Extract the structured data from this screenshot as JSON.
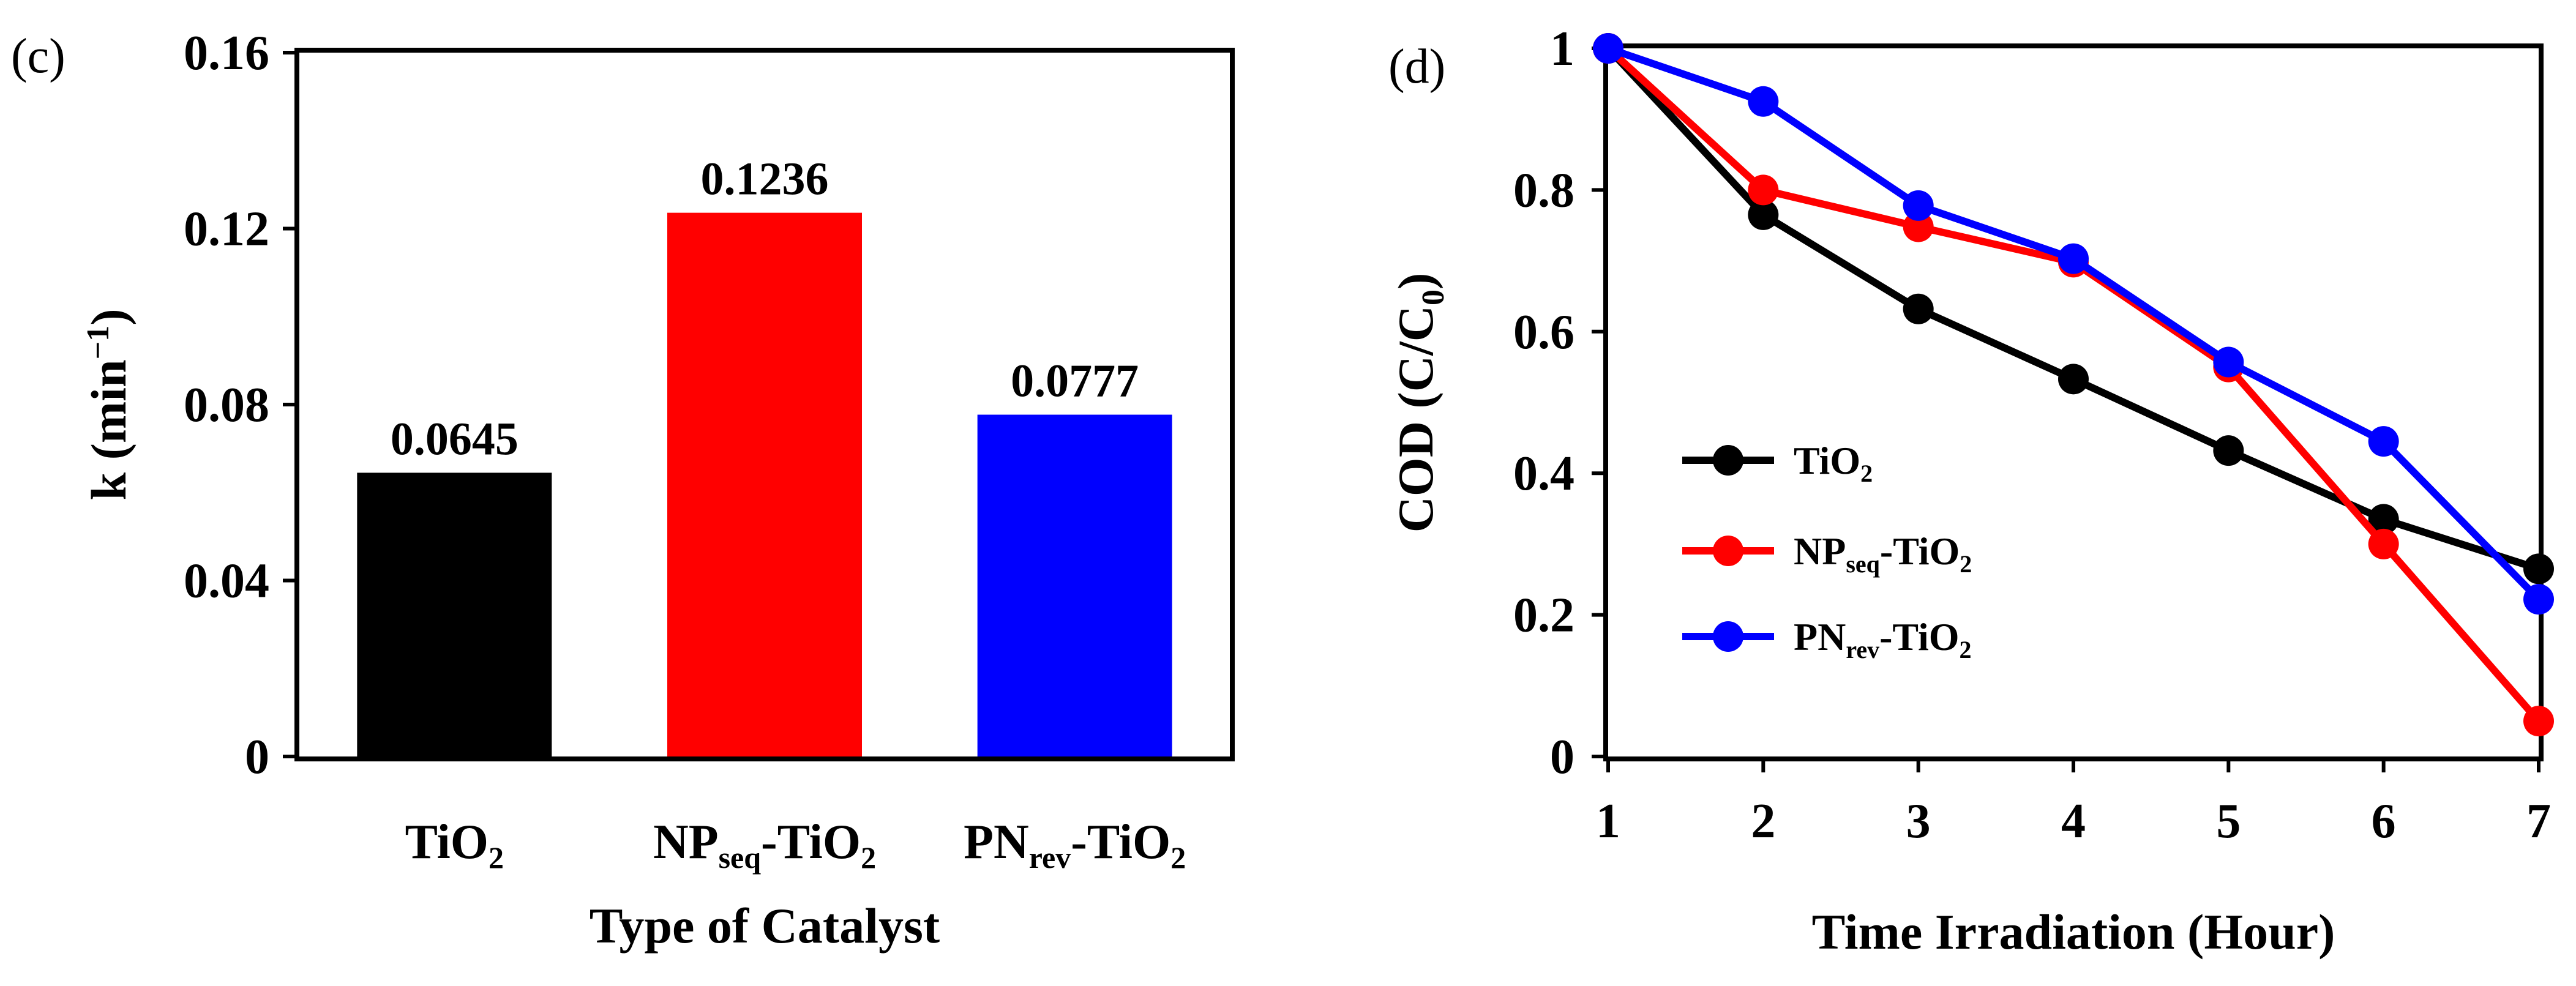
{
  "chart_data": [
    {
      "panel": "(c)",
      "type": "bar",
      "categories": [
        {
          "base": "TiO",
          "sub": "2",
          "rest": "",
          "sub2": ""
        },
        {
          "base": "NP",
          "sub": "seq",
          "rest": "-TiO",
          "sub2": "2"
        },
        {
          "base": "PN",
          "sub": "rev",
          "rest": "-TiO",
          "sub2": "2"
        }
      ],
      "values": [
        0.0645,
        0.1236,
        0.0777
      ],
      "value_labels": [
        "0.0645",
        "0.1236",
        "0.0777"
      ],
      "colors": [
        "#000000",
        "#ff0000",
        "#0000ff"
      ],
      "xlabel": "Type of Catalyst",
      "ylabel": {
        "base": "k (min",
        "sup": "−1",
        "close": ")"
      },
      "ylim": [
        0,
        0.16
      ],
      "yticks": [
        0,
        0.04,
        0.08,
        0.12,
        0.16
      ],
      "ytick_labels": [
        "0",
        "0.04",
        "0.08",
        "0.12",
        "0.16"
      ],
      "grid": false
    },
    {
      "panel": "(d)",
      "type": "line",
      "x": [
        1,
        2,
        3,
        4,
        5,
        6,
        7
      ],
      "series": [
        {
          "name": {
            "base": "TiO",
            "sub": "2",
            "rest": "",
            "sub2": ""
          },
          "color": "#000000",
          "values": [
            1.0,
            0.765,
            0.632,
            0.533,
            0.432,
            0.335,
            0.265
          ]
        },
        {
          "name": {
            "base": "NP",
            "sub": "seq",
            "rest": "-TiO",
            "sub2": "2"
          },
          "color": "#ff0000",
          "values": [
            1.0,
            0.8,
            0.748,
            0.698,
            0.55,
            0.3,
            0.05
          ]
        },
        {
          "name": {
            "base": "PN",
            "sub": "rev",
            "rest": "-TiO",
            "sub2": "2"
          },
          "color": "#0000ff",
          "values": [
            1.0,
            0.925,
            0.778,
            0.703,
            0.557,
            0.445,
            0.222
          ]
        }
      ],
      "xlabel": "Time Irradiation (Hour)",
      "ylabel": {
        "base": "COD (C/C",
        "sub": "0",
        "close": ")"
      },
      "xlim": [
        1,
        7
      ],
      "ylim": [
        0,
        1
      ],
      "xticks": [
        1,
        2,
        3,
        4,
        5,
        6,
        7
      ],
      "xtick_labels": [
        "1",
        "2",
        "3",
        "4",
        "5",
        "6",
        "7"
      ],
      "yticks": [
        0,
        0.2,
        0.4,
        0.6,
        0.8,
        1
      ],
      "ytick_labels": [
        "0",
        "0.2",
        "0.4",
        "0.6",
        "0.8",
        "1"
      ],
      "legend": "center-left",
      "grid": false
    }
  ]
}
